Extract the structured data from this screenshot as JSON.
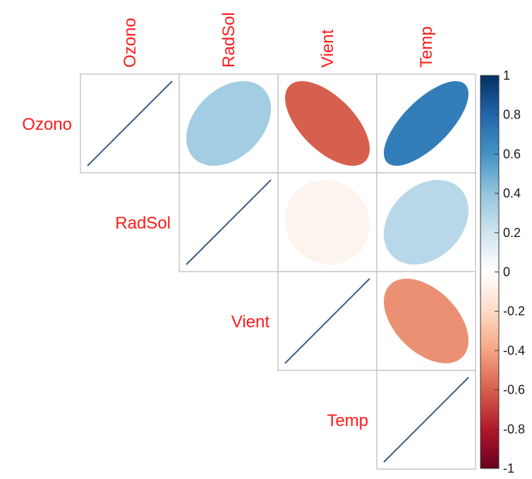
{
  "chart_data": {
    "type": "heatmap",
    "variables": [
      "Ozono",
      "RadSol",
      "Vient",
      "Temp"
    ],
    "matrix_shape": "upper-triangular",
    "method": "ellipse",
    "correlations": [
      [
        1.0,
        0.35,
        -0.6,
        0.7
      ],
      [
        0.35,
        1.0,
        -0.06,
        0.28
      ],
      [
        -0.6,
        -0.06,
        1.0,
        -0.46
      ],
      [
        0.7,
        0.28,
        -0.46,
        1.0
      ]
    ],
    "colorbar": {
      "range": [
        -1,
        1
      ],
      "ticks": [
        "1",
        "0.8",
        "0.6",
        "0.4",
        "0.2",
        "0",
        "-0.2",
        "-0.4",
        "-0.6",
        "-0.8",
        "-1"
      ]
    },
    "colors": {
      "label": "#ff1a1a",
      "diagonal_line": "#3b5b82",
      "grid": "#c8c8c8",
      "scale": [
        "#67001f",
        "#b2182b",
        "#d6604d",
        "#f4a582",
        "#fddbc7",
        "#ffffff",
        "#d1e5f0",
        "#92c5de",
        "#4393c3",
        "#2166ac",
        "#053061"
      ]
    }
  }
}
